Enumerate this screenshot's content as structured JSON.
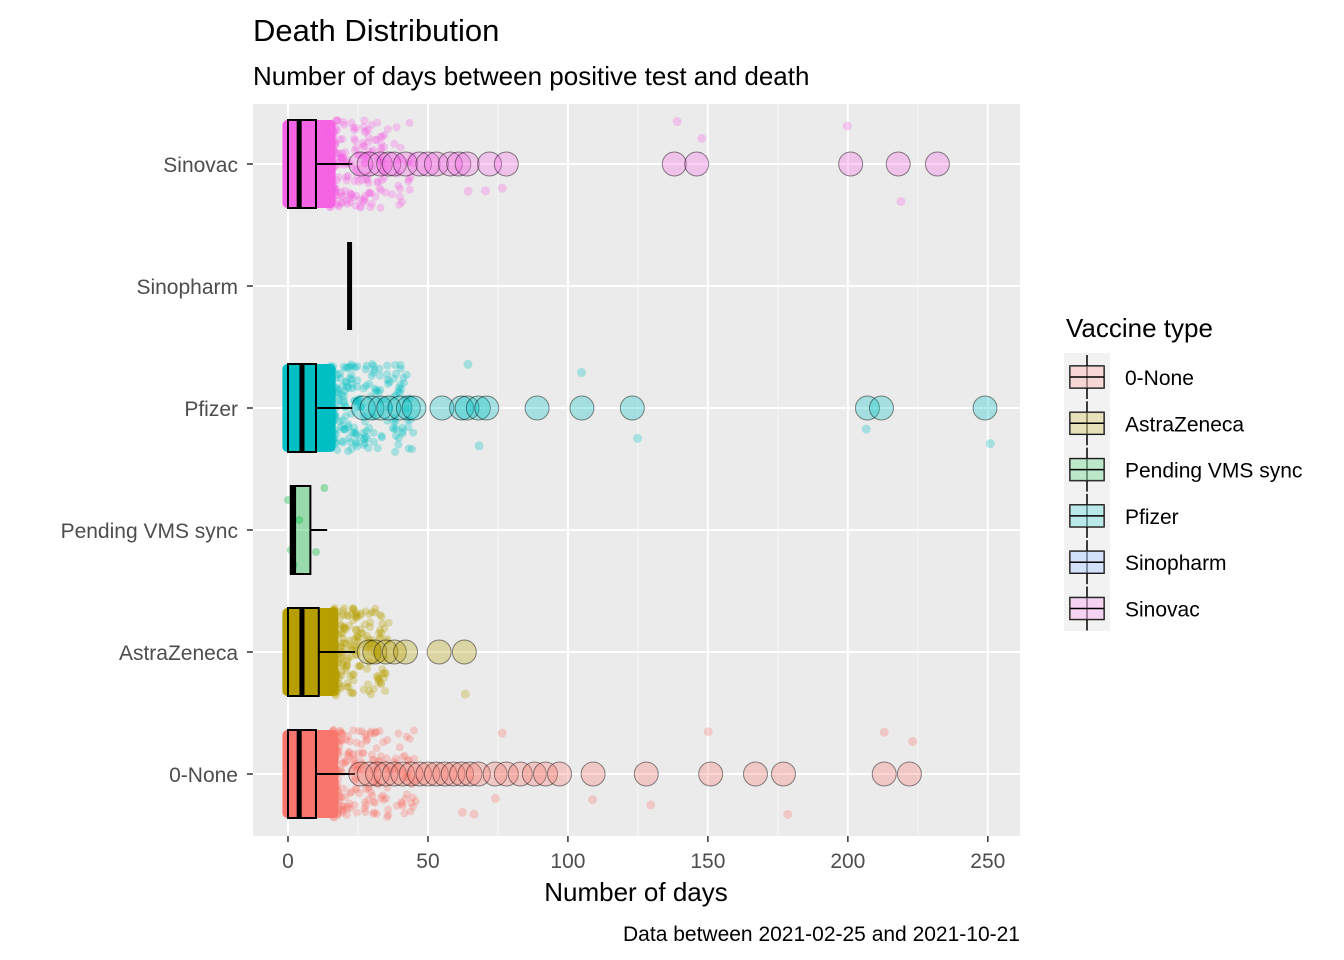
{
  "chart_data": {
    "type": "boxplot",
    "title": "Death Distribution",
    "subtitle": "Number of days between positive test and death",
    "caption": "Data between 2021-02-25 and 2021-10-21",
    "xlabel": "Number of days",
    "ylabel": "",
    "xlim": [
      -12.5,
      261.5
    ],
    "xticks": [
      "0",
      "50",
      "100",
      "150",
      "200",
      "250"
    ],
    "xtick_values": [
      0,
      50,
      100,
      150,
      200,
      250
    ],
    "grid": true,
    "legend": {
      "title": "Vaccine type",
      "placement": "right",
      "entries": [
        "0-None",
        "AstraZeneca",
        "Pending VMS sync",
        "Pfizer",
        "Sinopharm",
        "Sinovac"
      ]
    },
    "colors": {
      "0-None": "#F8766D",
      "AstraZeneca": "#B79F00",
      "Pending VMS sync": "#00BA38",
      "Pfizer": "#00BFC4",
      "Sinopharm": "#619CFF",
      "Sinovac": "#F564E3"
    },
    "categories": [
      "Sinovac",
      "Sinopharm",
      "Pfizer",
      "Pending VMS sync",
      "AstraZeneca",
      "0-None"
    ],
    "series": [
      {
        "name": "Sinovac",
        "q1": 0,
        "median": 4,
        "q3": 10,
        "whisker_low": 0,
        "whisker_high": 23,
        "outliers": [
          26,
          29,
          33,
          36,
          38,
          42,
          47,
          50,
          53,
          58,
          61,
          64,
          72,
          78,
          138,
          146,
          201,
          218,
          232
        ]
      },
      {
        "name": "Sinopharm",
        "q1": 22,
        "median": 22,
        "q3": 22,
        "whisker_low": 22,
        "whisker_high": 22,
        "outliers": []
      },
      {
        "name": "Pfizer",
        "q1": 0,
        "median": 5,
        "q3": 10,
        "whisker_low": 0,
        "whisker_high": 23,
        "outliers": [
          27,
          30,
          33,
          36,
          40,
          43,
          45,
          55,
          62,
          64,
          68,
          71,
          89,
          105,
          123,
          207,
          212,
          249
        ]
      },
      {
        "name": "Pending VMS sync",
        "q1": 1,
        "median": 2,
        "q3": 8,
        "whisker_low": 0,
        "whisker_high": 14,
        "outliers": []
      },
      {
        "name": "AstraZeneca",
        "q1": 0,
        "median": 5,
        "q3": 11,
        "whisker_low": 0,
        "whisker_high": 24,
        "outliers": [
          29,
          31,
          35,
          38,
          42,
          54,
          63
        ]
      },
      {
        "name": "0-None",
        "q1": 0,
        "median": 4,
        "q3": 10,
        "whisker_low": 0,
        "whisker_high": 24,
        "outliers": [
          26,
          29,
          32,
          35,
          38,
          41,
          44,
          47,
          50,
          53,
          56,
          59,
          62,
          65,
          68,
          74,
          78,
          83,
          88,
          92,
          97,
          109,
          128,
          151,
          167,
          177,
          213,
          222
        ]
      }
    ]
  }
}
